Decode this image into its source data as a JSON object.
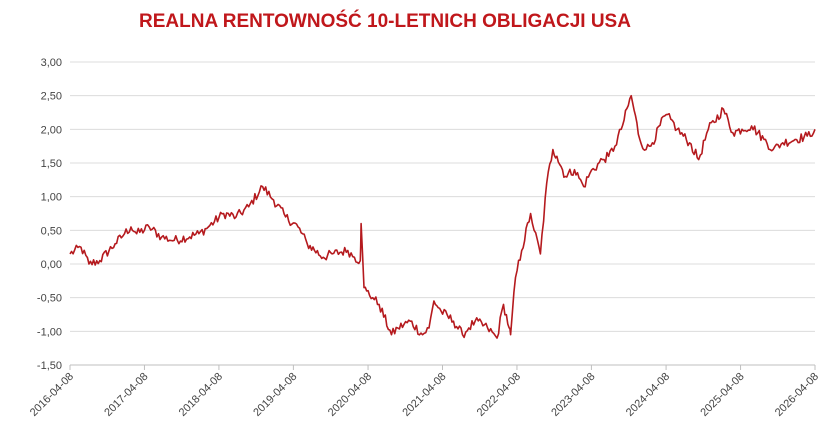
{
  "chart_data": {
    "type": "line",
    "title": "REALNA RENTOWNOŚĆ 10-LETNICH OBLIGACJI USA",
    "ylim": [
      -1.5,
      3.0
    ],
    "yticks": [
      -1.5,
      -1.0,
      -0.5,
      0.0,
      0.5,
      1.0,
      1.5,
      2.0,
      2.5,
      3.0
    ],
    "ytick_labels": [
      "-1,50",
      "-1,00",
      "-0,50",
      "0,00",
      "0,50",
      "1,00",
      "1,50",
      "2,00",
      "2,50",
      "3,00"
    ],
    "xticks": [
      "2016-04-08",
      "2017-04-08",
      "2018-04-08",
      "2019-04-08",
      "2020-04-08",
      "2021-04-08",
      "2022-04-08",
      "2023-04-08",
      "2024-04-08",
      "2025-04-08",
      "2026-04-08"
    ],
    "xlim": [
      "2016-04-08",
      "2026-04-08"
    ],
    "grid": "horizontal",
    "color": "#b51a1e",
    "title_color": "#c0171b",
    "series": [
      {
        "x": [
          "2016-04-08",
          "2016-06-01",
          "2016-07-10",
          "2016-09-01",
          "2016-11-15",
          "2016-12-31",
          "2017-02-01",
          "2017-03-01",
          "2017-05-01",
          "2017-07-01",
          "2017-09-01",
          "2017-12-31",
          "2018-02-15",
          "2018-05-01",
          "2018-07-01",
          "2018-09-01",
          "2018-11-08",
          "2019-01-01",
          "2019-03-01",
          "2019-05-01",
          "2019-06-15",
          "2019-09-01",
          "2019-10-15",
          "2019-12-31",
          "2020-02-01",
          "2020-03-01",
          "2020-03-05",
          "2020-03-19",
          "2020-04-01",
          "2020-05-01",
          "2020-06-01",
          "2020-08-01",
          "2020-09-01",
          "2020-11-01",
          "2020-12-31",
          "2021-02-01",
          "2021-02-25",
          "2021-04-01",
          "2021-06-01",
          "2021-07-15",
          "2021-08-15",
          "2021-09-15",
          "2021-11-15",
          "2021-12-31",
          "2022-02-01",
          "2022-03-01",
          "2022-03-08",
          "2022-04-01",
          "2022-05-01",
          "2022-06-14",
          "2022-07-01",
          "2022-08-01",
          "2022-09-01",
          "2022-10-01",
          "2022-10-21",
          "2022-12-01",
          "2023-01-15",
          "2023-03-01",
          "2023-04-01",
          "2023-06-01",
          "2023-07-01",
          "2023-08-01",
          "2023-09-01",
          "2023-10-20",
          "2023-12-01",
          "2024-01-01",
          "2024-02-01",
          "2024-04-01",
          "2024-05-01",
          "2024-06-01",
          "2024-08-01",
          "2024-09-15",
          "2024-11-01",
          "2025-01-14",
          "2025-03-01",
          "2025-04-15",
          "2025-06-01",
          "2025-08-01",
          "2025-09-15",
          "2025-11-01",
          "2026-01-01",
          "2026-03-01",
          "2026-04-08"
        ],
        "y": [
          0.15,
          0.25,
          0.0,
          0.05,
          0.3,
          0.45,
          0.55,
          0.45,
          0.55,
          0.4,
          0.35,
          0.45,
          0.55,
          0.75,
          0.7,
          0.85,
          1.15,
          0.95,
          0.7,
          0.55,
          0.3,
          0.1,
          0.15,
          0.2,
          0.1,
          0.05,
          0.6,
          -0.35,
          -0.4,
          -0.5,
          -0.6,
          -1.05,
          -0.95,
          -0.85,
          -1.05,
          -0.95,
          -0.55,
          -0.7,
          -0.85,
          -1.05,
          -0.95,
          -0.85,
          -0.95,
          -1.1,
          -0.6,
          -0.95,
          -1.05,
          -0.2,
          0.2,
          0.75,
          0.5,
          0.15,
          1.2,
          1.7,
          1.6,
          1.3,
          1.4,
          1.15,
          1.35,
          1.55,
          1.6,
          1.75,
          2.0,
          2.5,
          1.85,
          1.7,
          1.8,
          2.2,
          2.15,
          2.0,
          1.8,
          1.55,
          2.0,
          2.3,
          1.95,
          2.0,
          2.05,
          1.85,
          1.7,
          1.8,
          1.85,
          1.9,
          2.0
        ]
      }
    ]
  }
}
